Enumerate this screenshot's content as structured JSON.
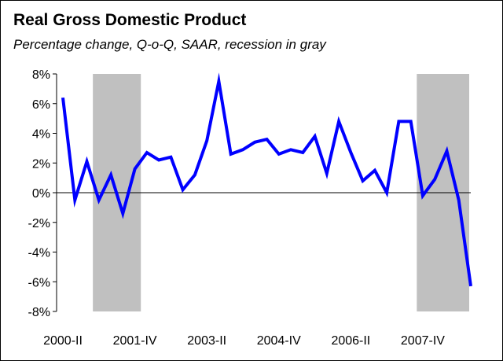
{
  "chart_data": {
    "type": "line",
    "title": "Real Gross Domestic Product",
    "subtitle": "Percentage change, Q-o-Q, SAAR, recession in gray",
    "ylim": [
      -8,
      8
    ],
    "y_ticks": [
      "8%",
      "6%",
      "4%",
      "2%",
      "0%",
      "-2%",
      "-4%",
      "-6%",
      "-8%"
    ],
    "y_tick_values": [
      8,
      6,
      4,
      2,
      0,
      -2,
      -4,
      -6,
      -8
    ],
    "x_tick_labels": [
      "2000-II",
      "2001-IV",
      "2003-II",
      "2004-IV",
      "2006-II",
      "2007-IV"
    ],
    "x_tick_indices": [
      0,
      6,
      12,
      18,
      24,
      30
    ],
    "categories": [
      "2000-II",
      "2000-III",
      "2000-IV",
      "2001-I",
      "2001-II",
      "2001-III",
      "2001-IV",
      "2002-I",
      "2002-II",
      "2002-III",
      "2002-IV",
      "2003-I",
      "2003-II",
      "2003-III",
      "2003-IV",
      "2004-I",
      "2004-II",
      "2004-III",
      "2004-IV",
      "2005-I",
      "2005-II",
      "2005-III",
      "2005-IV",
      "2006-I",
      "2006-II",
      "2006-III",
      "2006-IV",
      "2007-I",
      "2007-II",
      "2007-III",
      "2007-IV",
      "2008-I",
      "2008-II",
      "2008-III",
      "2008-IV"
    ],
    "series": [
      {
        "color": "#0000ff",
        "values": [
          6.4,
          -0.5,
          2.1,
          -0.5,
          1.2,
          -1.4,
          1.6,
          2.7,
          2.2,
          2.4,
          0.2,
          1.2,
          3.5,
          7.5,
          2.6,
          2.9,
          3.4,
          3.6,
          2.6,
          2.9,
          2.7,
          3.8,
          1.3,
          4.8,
          2.7,
          0.8,
          1.5,
          0.0,
          4.8,
          4.8,
          -0.2,
          0.9,
          2.8,
          -0.5,
          -6.3
        ]
      }
    ],
    "recessions": [
      {
        "start": "2001-I",
        "end": "2001-IV"
      },
      {
        "start": "2007-IV",
        "end": "2008-IV"
      }
    ],
    "recession_color": "#c0c0c0",
    "grid": false,
    "legend": "none"
  }
}
